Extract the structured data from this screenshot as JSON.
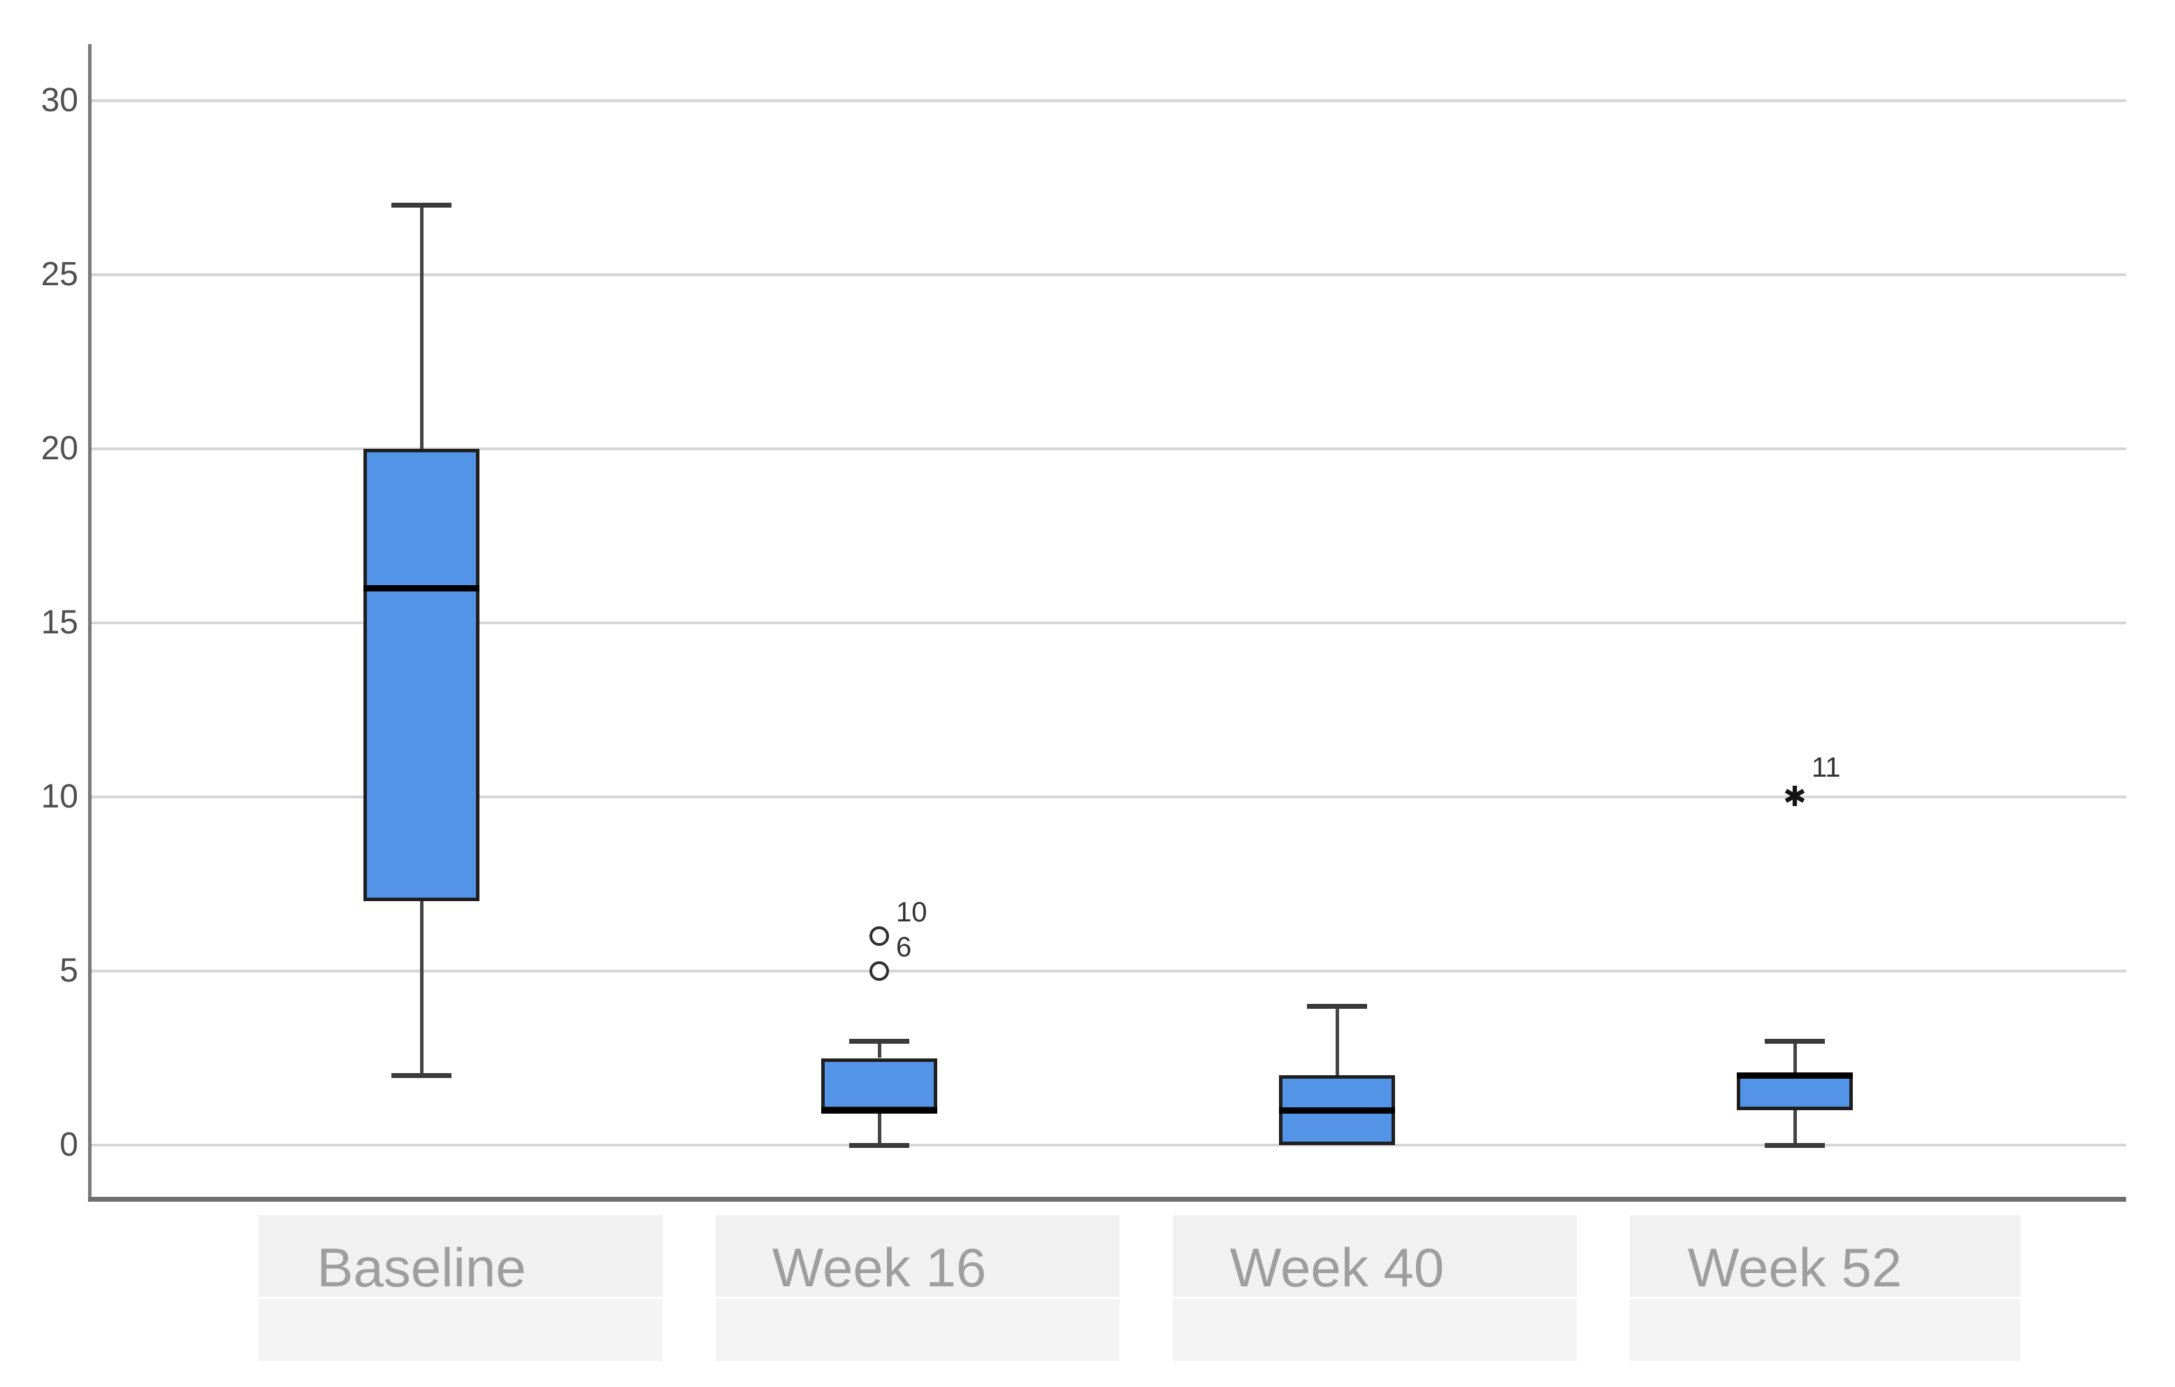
{
  "chart_data": {
    "type": "box",
    "title": "",
    "categories": [
      "Baseline",
      "Week 16",
      "Week 40",
      "Week 52"
    ],
    "y_axis": {
      "label": "",
      "ticks": [
        0,
        5,
        10,
        15,
        20,
        25,
        30
      ],
      "range": [
        0,
        30
      ]
    },
    "x_axis": {
      "label": ""
    },
    "grid": true,
    "legend": false,
    "series": [
      {
        "category": "Baseline",
        "whisker_low": 2,
        "q1": 7,
        "median": 16,
        "q3": 20,
        "whisker_high": 27,
        "outliers": []
      },
      {
        "category": "Week 16",
        "whisker_low": 0,
        "q1": 1,
        "median": 1,
        "q3": 2.5,
        "whisker_high": 3,
        "outliers": [
          {
            "value": 6,
            "case_label": "10",
            "marker": "circle"
          },
          {
            "value": 5,
            "case_label": "6",
            "marker": "circle"
          }
        ]
      },
      {
        "category": "Week 40",
        "whisker_low": 0,
        "q1": 0,
        "median": 1,
        "q3": 2,
        "whisker_high": 4,
        "outliers": []
      },
      {
        "category": "Week 52",
        "whisker_low": 0,
        "q1": 1,
        "median": 2,
        "q3": 2,
        "whisker_high": 3,
        "outliers": [
          {
            "value": 10,
            "case_label": "11",
            "marker": "star"
          }
        ]
      }
    ],
    "colors": {
      "box_fill": "#5394e6",
      "box_border": "#1f1f1f",
      "median": "#000000",
      "whisker": "#454545",
      "gridline": "#d6d6d6",
      "y_axis_line": "#7a7a7a",
      "x_axis_line": "#6f6f6f",
      "tick_label": "#4f4f4f",
      "category_label": "#9e9e9e",
      "category_band": "#f1f1f1",
      "outlier_marker": "#2e2e2e"
    },
    "marker_glyphs": {
      "star": "✱"
    }
  }
}
